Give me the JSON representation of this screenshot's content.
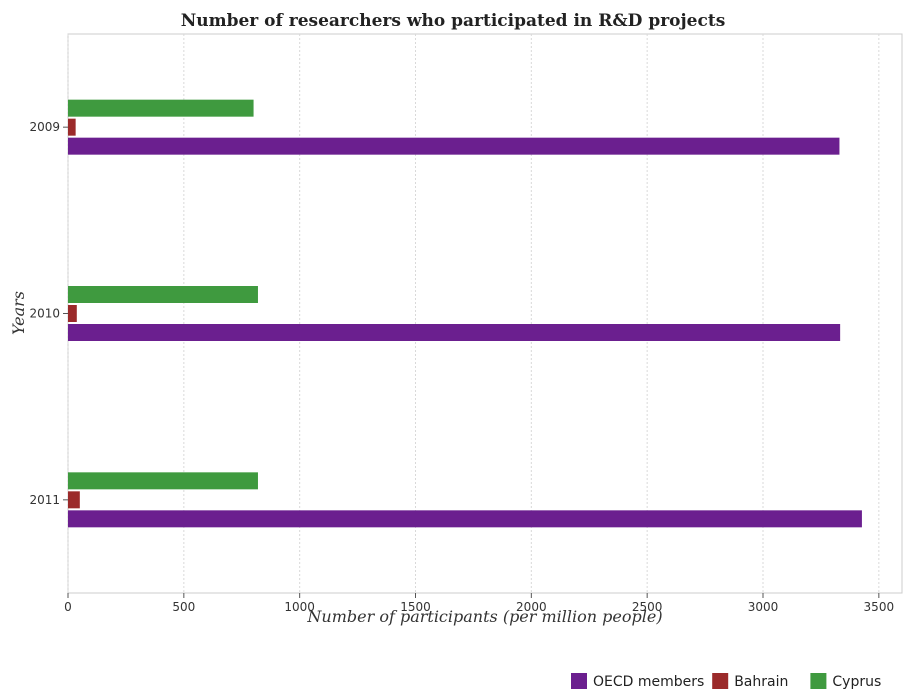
{
  "chart_data": {
    "type": "bar",
    "orientation": "horizontal",
    "title": "Number of researchers who participated in R&D projects",
    "xlabel": "Number of participants (per million people)",
    "ylabel": "Years",
    "categories": [
      "2009",
      "2010",
      "2011"
    ],
    "xlim": [
      0,
      3600
    ],
    "xticks": [
      0,
      500,
      1000,
      1500,
      2000,
      2500,
      3000,
      3500
    ],
    "grid": true,
    "legend_position": "bottom-right",
    "series": [
      {
        "name": "OECD members",
        "color": "#6b1f8f",
        "values": [
          3330,
          3333,
          3427
        ]
      },
      {
        "name": "Bahrain",
        "color": "#9b2a2a",
        "values": [
          33,
          38,
          51
        ]
      },
      {
        "name": "Cyprus",
        "color": "#3f9a3f",
        "values": [
          801,
          820,
          820
        ]
      }
    ]
  }
}
